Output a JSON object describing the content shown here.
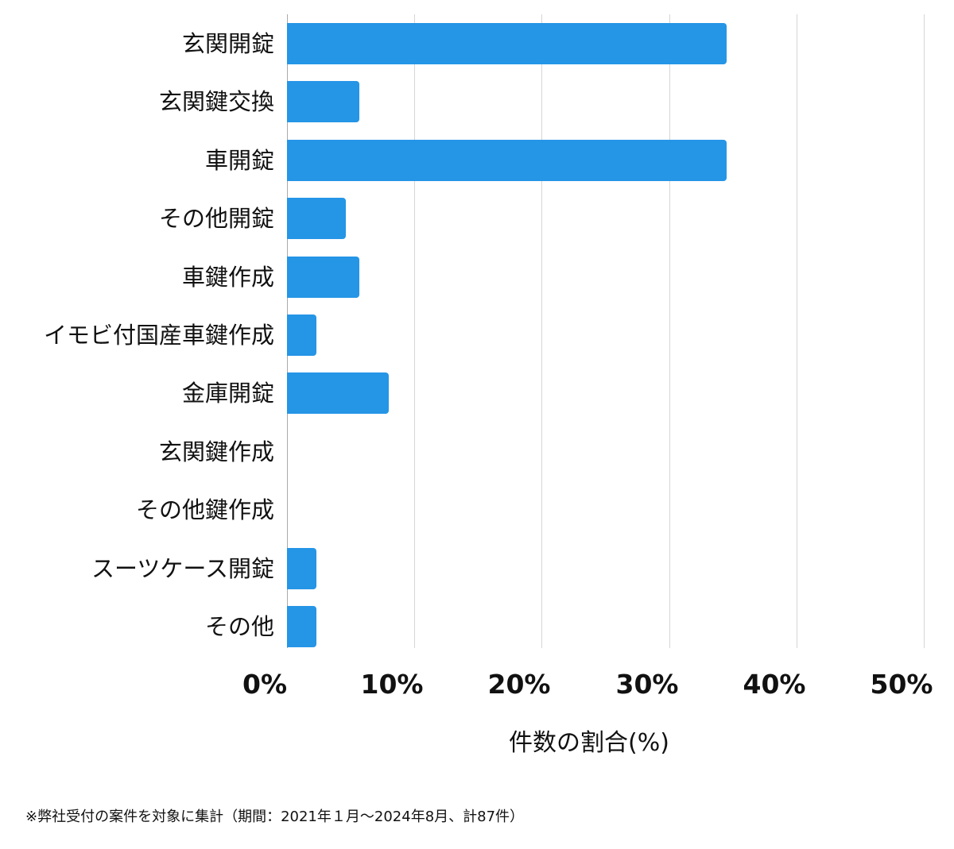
{
  "chart_data": {
    "type": "bar",
    "orientation": "horizontal",
    "title": "",
    "xlabel": "件数の割合(%)",
    "ylabel": "",
    "xlim": [
      0,
      50
    ],
    "xticks": [
      "0%",
      "10%",
      "20%",
      "30%",
      "40%",
      "50%"
    ],
    "grid": true,
    "legend": null,
    "bar_color": "#2595e6",
    "categories": [
      "玄関開錠",
      "玄関鍵交換",
      "車開錠",
      "その他開錠",
      "車鍵作成",
      "イモビ付国産車鍵作成",
      "金庫開錠",
      "玄関鍵作成",
      "その他鍵作成",
      "スーツケース開錠",
      "その他"
    ],
    "values": [
      34.5,
      5.7,
      34.5,
      4.6,
      5.7,
      2.3,
      8.0,
      0,
      0,
      2.3,
      2.3
    ],
    "counts_estimated": [
      30,
      5,
      30,
      4,
      5,
      2,
      7,
      0,
      0,
      2,
      2
    ],
    "footnote": "※弊社受付の案件を対象に集計（期間：2021年１月～2024年8月、計87件）"
  }
}
